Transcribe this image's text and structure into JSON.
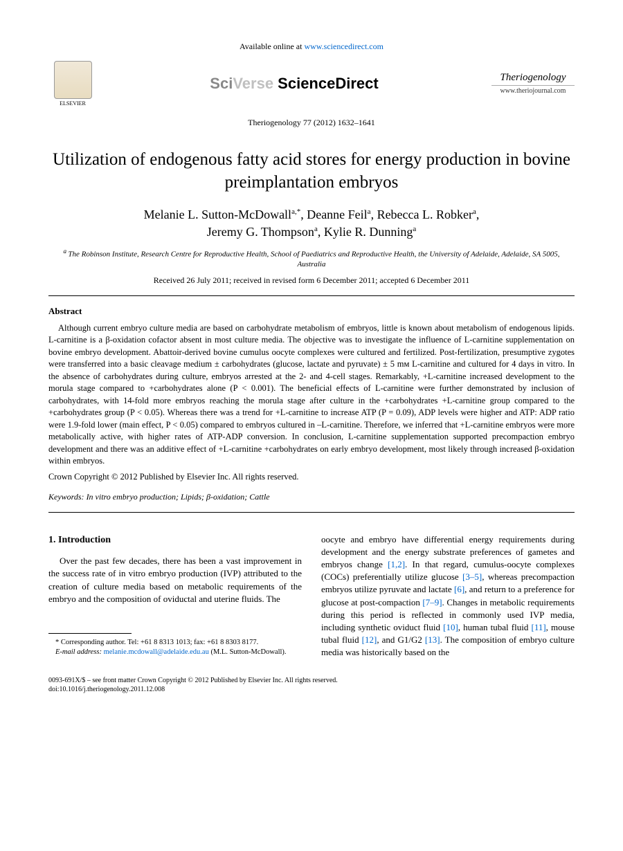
{
  "header": {
    "available_text": "Available online at ",
    "site_url": "www.sciencedirect.com",
    "sciverse_sci": "Sci",
    "sciverse_verse": "Verse ",
    "sciverse_direct": "ScienceDirect",
    "elsevier_label": "ELSEVIER",
    "journal_name": "Theriogenology",
    "journal_url": "www.theriojournal.com",
    "citation": "Theriogenology 77 (2012) 1632–1641"
  },
  "article": {
    "title": "Utilization of endogenous fatty acid stores for energy production in bovine preimplantation embryos",
    "authors_line1": "Melanie L. Sutton-McDowall",
    "authors_sup1": "a,",
    "authors_star": "*",
    "authors_line1b": ", Deanne Feil",
    "authors_sup2": "a",
    "authors_line1c": ", Rebecca L. Robker",
    "authors_sup3": "a",
    "authors_line1d": ",",
    "authors_line2a": "Jeremy G. Thompson",
    "authors_sup4": "a",
    "authors_line2b": ", Kylie R. Dunning",
    "authors_sup5": "a",
    "affiliation": "The Robinson Institute, Research Centre for Reproductive Health, School of Paediatrics and Reproductive Health, the University of Adelaide, Adelaide, SA 5005, Australia",
    "affiliation_sup": "a ",
    "dates": "Received 26 July 2011; received in revised form 6 December 2011; accepted 6 December 2011"
  },
  "abstract": {
    "heading": "Abstract",
    "body": "Although current embryo culture media are based on carbohydrate metabolism of embryos, little is known about metabolism of endogenous lipids. L-carnitine is a β-oxidation cofactor absent in most culture media. The objective was to investigate the influence of L-carnitine supplementation on bovine embryo development. Abattoir-derived bovine cumulus oocyte complexes were cultured and fertilized. Post-fertilization, presumptive zygotes were transferred into a basic cleavage medium ± carbohydrates (glucose, lactate and pyruvate) ± 5 mᴍ L-carnitine and cultured for 4 days in vitro. In the absence of carbohydrates during culture, embryos arrested at the 2- and 4-cell stages. Remarkably, +L-carnitine increased development to the morula stage compared to +carbohydrates alone (P < 0.001). The beneficial effects of L-carnitine were further demonstrated by inclusion of carbohydrates, with 14-fold more embryos reaching the morula stage after culture in the +carbohydrates +L-carnitine group compared to the +carbohydrates group (P < 0.05). Whereas there was a trend for +L-carnitine to increase ATP (P = 0.09), ADP levels were higher and ATP: ADP ratio were 1.9-fold lower (main effect, P < 0.05) compared to embryos cultured in –L-carnitine. Therefore, we inferred that +L-carnitine embryos were more metabolically active, with higher rates of ATP-ADP conversion. In conclusion, L-carnitine supplementation supported precompaction embryo development and there was an additive effect of +L-carnitine +carbohydrates on early embryo development, most likely through increased β-oxidation within embryos.",
    "copyright": "Crown Copyright © 2012 Published by Elsevier Inc. All rights reserved."
  },
  "keywords": {
    "label": "Keywords: ",
    "text": "In vitro embryo production; Lipids; β-oxidation; Cattle"
  },
  "intro": {
    "heading": "1. Introduction",
    "col1_p1": "Over the past few decades, there has been a vast improvement in the success rate of in vitro embryo production (IVP) attributed to the creation of culture media based on metabolic requirements of the embryo and the composition of oviductal and uterine fluids. The",
    "col2_p1a": "oocyte and embryo have differential energy requirements during development and the energy substrate preferences of gametes and embryos change ",
    "ref1": "[1,2]",
    "col2_p1b": ". In that regard, cumulus-oocyte complexes (COCs) preferentially utilize glucose ",
    "ref2": "[3–5]",
    "col2_p1c": ", whereas precompaction embryos utilize pyruvate and lactate ",
    "ref3": "[6]",
    "col2_p1d": ", and return to a preference for glucose at post-compaction ",
    "ref4": "[7–9]",
    "col2_p1e": ". Changes in metabolic requirements during this period is reflected in commonly used IVP media, including synthetic oviduct fluid ",
    "ref5": "[10]",
    "col2_p1f": ", human tubal fluid ",
    "ref6": "[11]",
    "col2_p1g": ", mouse tubal fluid ",
    "ref7": "[12]",
    "col2_p1h": ", and G1/G2 ",
    "ref8": "[13]",
    "col2_p1i": ". The composition of embryo culture media was historically based on the"
  },
  "footnote": {
    "corr": "* Corresponding author. Tel: +61 8 8313 1013; fax: +61 8 8303 8177.",
    "email_label": "E-mail address: ",
    "email": "melanie.mcdowall@adelaide.edu.au",
    "email_suffix": " (M.L. Sutton-McDowall)."
  },
  "footer": {
    "line1": "0093-691X/$ – see front matter Crown Copyright © 2012 Published by Elsevier Inc. All rights reserved.",
    "line2": "doi:10.1016/j.theriogenology.2011.12.008"
  }
}
